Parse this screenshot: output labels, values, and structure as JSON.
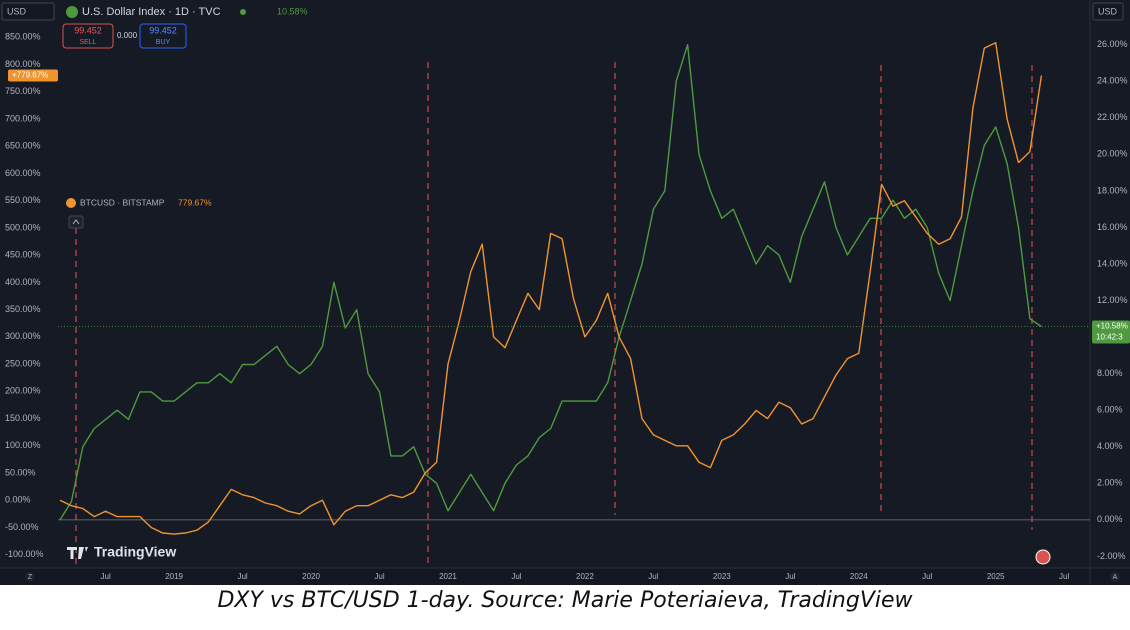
{
  "toolbar": {
    "currency": "USD",
    "sell_price": "99.452",
    "sell": "SELL",
    "spread": "0.000",
    "buy_price": "99.452",
    "buy": "BUY",
    "right_currency": "USD",
    "time": "10:42:3",
    "watermark": "TradingView",
    "zoom": "Z",
    "auto": "A"
  },
  "caption": "DXY vs BTC/USD 1-day. Source: Marie Poteriaieva, TradingView",
  "chart_data": {
    "type": "line",
    "x": [
      "2018-03",
      "2018-04",
      "2018-05",
      "2018-06",
      "2018-07",
      "2018-08",
      "2018-09",
      "2018-10",
      "2018-11",
      "2018-12",
      "2019-01",
      "2019-02",
      "2019-03",
      "2019-04",
      "2019-05",
      "2019-06",
      "2019-07",
      "2019-08",
      "2019-09",
      "2019-10",
      "2019-11",
      "2019-12",
      "2020-01",
      "2020-02",
      "2020-03",
      "2020-04",
      "2020-05",
      "2020-06",
      "2020-07",
      "2020-08",
      "2020-09",
      "2020-10",
      "2020-11",
      "2020-12",
      "2021-01",
      "2021-02",
      "2021-03",
      "2021-04",
      "2021-05",
      "2021-06",
      "2021-07",
      "2021-08",
      "2021-09",
      "2021-10",
      "2021-11",
      "2021-12",
      "2022-01",
      "2022-02",
      "2022-03",
      "2022-04",
      "2022-05",
      "2022-06",
      "2022-07",
      "2022-08",
      "2022-09",
      "2022-10",
      "2022-11",
      "2022-12",
      "2023-01",
      "2023-02",
      "2023-03",
      "2023-04",
      "2023-05",
      "2023-06",
      "2023-07",
      "2023-08",
      "2023-09",
      "2023-10",
      "2023-11",
      "2023-12",
      "2024-01",
      "2024-02",
      "2024-03",
      "2024-04",
      "2024-05",
      "2024-06",
      "2024-07",
      "2024-08",
      "2024-09",
      "2024-10",
      "2024-11",
      "2024-12",
      "2025-01",
      "2025-02",
      "2025-03",
      "2025-04",
      "2025-05"
    ],
    "xlim": [
      "2018-03",
      "2025-09"
    ],
    "xticks": [
      {
        "value": "2018-07",
        "label": "Jul"
      },
      {
        "value": "2019-01",
        "label": "2019"
      },
      {
        "value": "2019-07",
        "label": "Jul"
      },
      {
        "value": "2020-01",
        "label": "2020"
      },
      {
        "value": "2020-07",
        "label": "Jul"
      },
      {
        "value": "2021-01",
        "label": "2021"
      },
      {
        "value": "2021-07",
        "label": "Jul"
      },
      {
        "value": "2022-01",
        "label": "2022"
      },
      {
        "value": "2022-07",
        "label": "Jul"
      },
      {
        "value": "2023-01",
        "label": "2023"
      },
      {
        "value": "2023-07",
        "label": "Jul"
      },
      {
        "value": "2024-01",
        "label": "2024"
      },
      {
        "value": "2024-07",
        "label": "Jul"
      },
      {
        "value": "2025-01",
        "label": "2025"
      },
      {
        "value": "2025-07",
        "label": "Jul"
      }
    ],
    "ylim": [
      -150,
      900
    ],
    "yticks": [
      {
        "value": 850,
        "label": "850.00%"
      },
      {
        "value": 800,
        "label": "800.00%"
      },
      {
        "value": 750,
        "label": "750.00%"
      },
      {
        "value": 700,
        "label": "700.00%"
      },
      {
        "value": 650,
        "label": "650.00%"
      },
      {
        "value": 600,
        "label": "600.00%"
      },
      {
        "value": 550,
        "label": "550.00%"
      },
      {
        "value": 500,
        "label": "500.00%"
      },
      {
        "value": 450,
        "label": "450.00%"
      },
      {
        "value": 400,
        "label": "400.00%"
      },
      {
        "value": 350,
        "label": "350.00%"
      },
      {
        "value": 300,
        "label": "300.00%"
      },
      {
        "value": 250,
        "label": "250.00%"
      },
      {
        "value": 200,
        "label": "200.00%"
      },
      {
        "value": 150,
        "label": "150.00%"
      },
      {
        "value": 100,
        "label": "100.00%"
      },
      {
        "value": 50,
        "label": "50.00%"
      },
      {
        "value": 0,
        "label": "0.00%"
      },
      {
        "value": -50,
        "label": "-50.00%"
      },
      {
        "value": -100,
        "label": "-100.00%"
      }
    ],
    "y2lim": [
      -3.4,
      27.9
    ],
    "y2ticks": [
      {
        "value": 26,
        "label": "26.00%"
      },
      {
        "value": 24,
        "label": "24.00%"
      },
      {
        "value": 22,
        "label": "22.00%"
      },
      {
        "value": 20,
        "label": "20.00%"
      },
      {
        "value": 18,
        "label": "18.00%"
      },
      {
        "value": 16,
        "label": "16.00%"
      },
      {
        "value": 14,
        "label": "14.00%"
      },
      {
        "value": 12,
        "label": "12.00%"
      },
      {
        "value": 8,
        "label": "8.00%"
      },
      {
        "value": 6,
        "label": "6.00%"
      },
      {
        "value": 4,
        "label": "4.00%"
      },
      {
        "value": 2,
        "label": "2.00%"
      },
      {
        "value": 0,
        "label": "0.00%"
      },
      {
        "value": -2,
        "label": "-2.00%"
      }
    ],
    "grid": false,
    "series": [
      {
        "name": "U.S. Dollar Index · 1D · TVC",
        "color": "#4e9a3e",
        "axis": "y2",
        "last_label": "10.58%",
        "price_tag": "+10.58%",
        "values": [
          0,
          1,
          4,
          5,
          5.5,
          6,
          5.5,
          7,
          7,
          6.5,
          6.5,
          7,
          7.5,
          7.5,
          8,
          7.5,
          8.5,
          8.5,
          9,
          9.5,
          8.5,
          8,
          8.5,
          9.5,
          13,
          10.5,
          11.5,
          8,
          7,
          3.5,
          3.5,
          4,
          2.5,
          2,
          0.5,
          1.5,
          2.5,
          1.5,
          0.5,
          2,
          3,
          3.5,
          4.5,
          5,
          6.5,
          6.5,
          6.5,
          6.5,
          7.5,
          10,
          12,
          14,
          17,
          18,
          24,
          26,
          20,
          18,
          16.5,
          17,
          15.5,
          14,
          15,
          14.5,
          13,
          15.5,
          17,
          18.5,
          16,
          14.5,
          15.5,
          16.5,
          16.5,
          17.5,
          16.5,
          17,
          16,
          13.5,
          12,
          15,
          18,
          20.5,
          21.5,
          19.5,
          16,
          11,
          10.58
        ]
      },
      {
        "name": "BTCUSD · BITSTAMP",
        "color": "#f0942f",
        "last_label": "779.67%",
        "price_tag": "+779.67%",
        "values": [
          0,
          -10,
          -15,
          -30,
          -20,
          -30,
          -30,
          -30,
          -50,
          -60,
          -62,
          -60,
          -55,
          -40,
          -10,
          20,
          10,
          5,
          -5,
          -10,
          -20,
          -25,
          -10,
          0,
          -45,
          -20,
          -10,
          -10,
          0,
          10,
          5,
          15,
          50,
          70,
          250,
          330,
          420,
          470,
          300,
          280,
          330,
          380,
          350,
          490,
          480,
          370,
          300,
          330,
          380,
          300,
          260,
          150,
          120,
          110,
          100,
          100,
          70,
          60,
          110,
          120,
          140,
          165,
          150,
          180,
          170,
          140,
          150,
          190,
          230,
          260,
          270,
          420,
          580,
          540,
          550,
          520,
          490,
          470,
          480,
          520,
          720,
          830,
          840,
          700,
          620,
          640,
          779.67
        ]
      }
    ]
  }
}
